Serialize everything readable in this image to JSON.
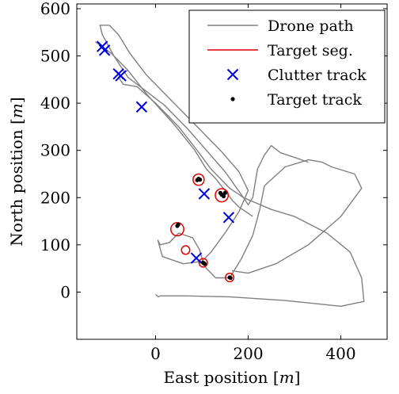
{
  "chart_data": {
    "type": "scatter",
    "xlabel": "East position",
    "xlabel_unit": "m",
    "ylabel": "North position",
    "ylabel_unit": "m",
    "xlim": [
      -170,
      500
    ],
    "ylim": [
      -100,
      610
    ],
    "xticks": [
      0,
      200,
      400
    ],
    "yticks": [
      0,
      100,
      200,
      300,
      400,
      500,
      600
    ],
    "grid": false,
    "legend_position": "top-right",
    "colors": {
      "drone_path": "#808080",
      "target_seg": "#e00000",
      "clutter_track": "#0000e0",
      "target_track": "#000000"
    },
    "legend": [
      {
        "key": "drone_path",
        "label": "Drone path",
        "marker": "line"
      },
      {
        "key": "target_seg",
        "label": "Target seg.",
        "marker": "line"
      },
      {
        "key": "clutter_track",
        "label": "Clutter track",
        "marker": "x"
      },
      {
        "key": "target_track",
        "label": "Target track",
        "marker": "dot"
      }
    ],
    "series": [
      {
        "key": "drone_path",
        "paths": [
          [
            [
              0,
              -5
            ],
            [
              6,
              -10
            ],
            [
              10,
              -8
            ],
            [
              60,
              -8
            ],
            [
              160,
              -10
            ],
            [
              280,
              -18
            ],
            [
              400,
              -30
            ],
            [
              450,
              -20
            ],
            [
              445,
              30
            ],
            [
              420,
              85
            ],
            [
              370,
              125
            ],
            [
              300,
              160
            ],
            [
              250,
              175
            ],
            [
              190,
              200
            ],
            [
              150,
              255
            ],
            [
              110,
              300
            ],
            [
              70,
              345
            ],
            [
              20,
              395
            ],
            [
              -20,
              425
            ],
            [
              -60,
              455
            ],
            [
              -90,
              500
            ],
            [
              -115,
              545
            ],
            [
              -120,
              565
            ],
            [
              -100,
              565
            ],
            [
              -80,
              545
            ],
            [
              -55,
              505
            ],
            [
              -20,
              460
            ],
            [
              30,
              410
            ],
            [
              90,
              350
            ],
            [
              140,
              300
            ],
            [
              180,
              255
            ],
            [
              200,
              215
            ],
            [
              180,
              170
            ],
            [
              150,
              125
            ],
            [
              120,
              85
            ],
            [
              100,
              65
            ]
          ],
          [
            [
              100,
              65
            ],
            [
              60,
              60
            ],
            [
              15,
              75
            ],
            [
              5,
              110
            ],
            [
              10,
              100
            ],
            [
              30,
              105
            ],
            [
              50,
              125
            ],
            [
              80,
              115
            ],
            [
              95,
              90
            ],
            [
              105,
              55
            ],
            [
              130,
              30
            ],
            [
              160,
              30
            ],
            [
              185,
              70
            ],
            [
              210,
              120
            ],
            [
              225,
              175
            ],
            [
              235,
              225
            ],
            [
              280,
              265
            ],
            [
              330,
              280
            ],
            [
              360,
              275
            ],
            [
              380,
              265
            ],
            [
              430,
              250
            ],
            [
              445,
              220
            ],
            [
              400,
              160
            ],
            [
              330,
              100
            ],
            [
              260,
              60
            ],
            [
              200,
              40
            ],
            [
              165,
              45
            ]
          ],
          [
            [
              -60,
              470
            ],
            [
              -80,
              455
            ],
            [
              -70,
              440
            ],
            [
              -40,
              435
            ],
            [
              0,
              400
            ],
            [
              50,
              350
            ],
            [
              90,
              300
            ],
            [
              120,
              260
            ],
            [
              160,
              220
            ],
            [
              175,
              210
            ],
            [
              190,
              200
            ],
            [
              200,
              185
            ],
            [
              210,
              200
            ],
            [
              220,
              260
            ],
            [
              235,
              290
            ],
            [
              250,
              310
            ],
            [
              270,
              295
            ],
            [
              300,
              285
            ],
            [
              330,
              275
            ]
          ],
          [
            [
              -130,
              530
            ],
            [
              -95,
              505
            ],
            [
              -60,
              470
            ],
            [
              -20,
              420
            ],
            [
              40,
              355
            ],
            [
              85,
              300
            ],
            [
              110,
              260
            ],
            [
              130,
              240
            ],
            [
              150,
              215
            ],
            [
              165,
              195
            ],
            [
              180,
              180
            ],
            [
              195,
              170
            ],
            [
              210,
              160
            ]
          ]
        ]
      },
      {
        "key": "target_seg",
        "circles": [
          {
            "x": 47,
            "y": 133,
            "r": 14
          },
          {
            "x": 93,
            "y": 238,
            "r": 12
          },
          {
            "x": 143,
            "y": 205,
            "r": 14
          },
          {
            "x": 65,
            "y": 89,
            "r": 9
          },
          {
            "x": 103,
            "y": 62,
            "r": 9
          },
          {
            "x": 160,
            "y": 31,
            "r": 9
          }
        ]
      },
      {
        "key": "clutter_track",
        "points": [
          [
            -115,
            520
          ],
          [
            -110,
            512
          ],
          [
            -80,
            462
          ],
          [
            -75,
            458
          ],
          [
            -30,
            392
          ],
          [
            105,
            208
          ],
          [
            158,
            158
          ],
          [
            88,
            72
          ]
        ]
      },
      {
        "key": "target_track",
        "points": [
          [
            47,
            140
          ],
          [
            49,
            143
          ],
          [
            90,
            237
          ],
          [
            93,
            240
          ],
          [
            96,
            238
          ],
          [
            140,
            210
          ],
          [
            143,
            206
          ],
          [
            147,
            203
          ],
          [
            150,
            210
          ],
          [
            103,
            62
          ],
          [
            106,
            60
          ],
          [
            160,
            31
          ],
          [
            162,
            30
          ]
        ]
      }
    ]
  }
}
